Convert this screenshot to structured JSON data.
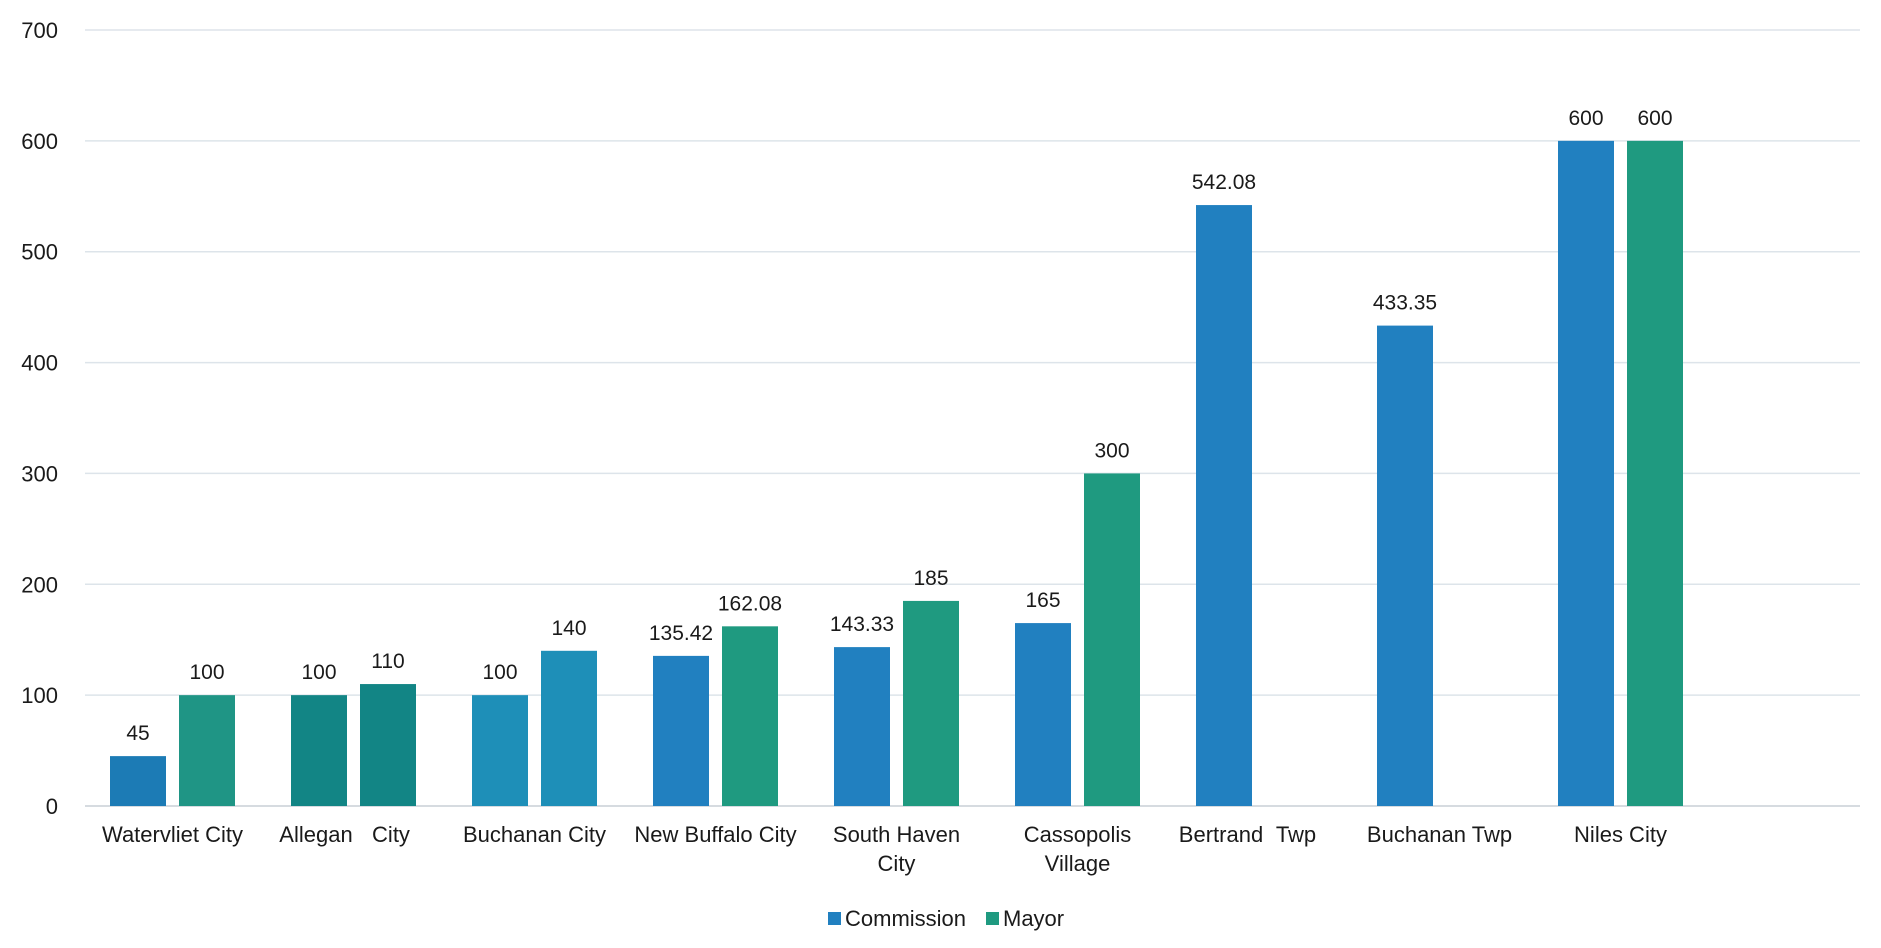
{
  "chart_data": {
    "type": "bar",
    "title": "",
    "xlabel": "",
    "ylabel": "",
    "ylim": [
      0,
      700
    ],
    "yticks": [
      "0",
      "100",
      "200",
      "300",
      "400",
      "500",
      "600",
      "700"
    ],
    "grid": true,
    "legend_position": "bottom-center",
    "categories": [
      [
        "Watervliet City"
      ],
      [
        "Allegan",
        "City"
      ],
      [
        "Buchanan City"
      ],
      [
        "New Buffalo City"
      ],
      [
        "South Haven",
        "City"
      ],
      [
        "Cassopolis",
        "Village"
      ],
      [
        "Bertrand",
        "Twp"
      ],
      [
        "Buchanan Twp"
      ],
      [
        "Niles City"
      ]
    ],
    "series": [
      {
        "name": "Commission",
        "color": "#2180c0",
        "values": [
          45,
          100,
          100,
          135.42,
          143.33,
          165,
          542.08,
          433.35,
          600
        ],
        "labels": [
          "45",
          "100",
          "100",
          "135.42",
          "143.33",
          "165",
          "542.08",
          "433.35",
          "600"
        ]
      },
      {
        "name": "Mayor",
        "color": "#1f9a80",
        "values": [
          100,
          110,
          140,
          162.08,
          185,
          300,
          null,
          null,
          600
        ],
        "labels": [
          "100",
          "110",
          "140",
          "162.08",
          "185",
          "300",
          "",
          "",
          "600"
        ]
      }
    ],
    "bar_colors_override": {
      "Commission": [
        "#1c7bb5",
        "#128585",
        "#1e8fb8",
        "#2180c0",
        "#2180c0",
        "#2180c0",
        "#2180c0",
        "#2180c0",
        "#2180c0"
      ],
      "Mayor": [
        "#1f9585",
        "#128585",
        "#1e8fb8",
        "#1f9a80",
        "#1f9a80",
        "#1f9a80",
        "#1f9a80",
        "#1f9a80",
        "#1f9a80"
      ]
    },
    "label_colors_override": {
      "Commission": [
        "#1c7bb5",
        "#128585",
        "#1e8fb8",
        "#1a1a1a",
        "#1a1a1a",
        "#1a1a1a",
        "#1a1a1a",
        "#1a1a1a",
        "#1a1a1a"
      ],
      "Mayor": [
        "#1f9585",
        "#128585",
        "#1a1a1a",
        "#1a1a1a",
        "#1a1a1a",
        "#1a1a1a",
        "#1a1a1a",
        "#1a1a1a",
        "#1a1a1a"
      ]
    }
  }
}
